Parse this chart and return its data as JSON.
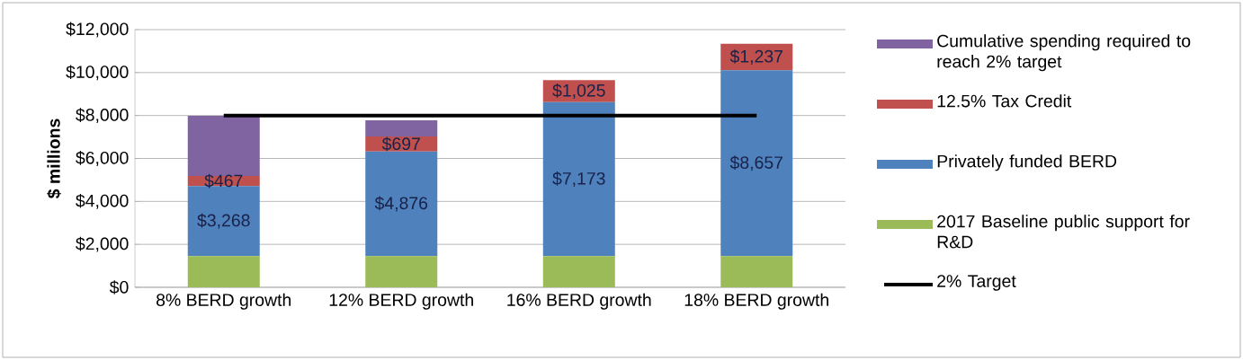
{
  "chart_data": {
    "type": "bar",
    "stacked": true,
    "ylabel": "$ millions",
    "categories": [
      "8% BERD growth",
      "12% BERD growth",
      "16% BERD growth",
      "18% BERD growth"
    ],
    "series": [
      {
        "name": "2017 Baseline public support for R&D",
        "color": "#9bbb59",
        "values": [
          1450,
          1450,
          1450,
          1450
        ]
      },
      {
        "name": "Privately funded BERD",
        "color": "#4f81bd",
        "values": [
          3268,
          4876,
          7173,
          8657
        ],
        "value_labels": [
          "$3,268",
          "$4,876",
          "$7,173",
          "$8,657"
        ]
      },
      {
        "name": "12.5% Tax Credit",
        "color": "#c0504d",
        "values": [
          467,
          697,
          1025,
          1237
        ],
        "value_labels": [
          "$467",
          "$697",
          "$1,025",
          "$1,237"
        ]
      },
      {
        "name": "Cumulative spending required to reach 2% target",
        "color": "#8064a2",
        "values": [
          2800,
          750,
          null,
          null
        ]
      },
      {
        "name": "2% Target",
        "type": "line",
        "color": "#000000",
        "values": [
          8000,
          8000,
          8000,
          8000
        ]
      }
    ],
    "ylim": [
      0,
      12000
    ],
    "yticks": [
      {
        "value": 0,
        "label": "$0"
      },
      {
        "value": 2000,
        "label": "$2,000"
      },
      {
        "value": 4000,
        "label": "$4,000"
      },
      {
        "value": 6000,
        "label": "$6,000"
      },
      {
        "value": 8000,
        "label": "$8,000"
      },
      {
        "value": 10000,
        "label": "$10,000"
      },
      {
        "value": 12000,
        "label": "$12,000"
      }
    ],
    "grid": "y",
    "legend": "right"
  }
}
